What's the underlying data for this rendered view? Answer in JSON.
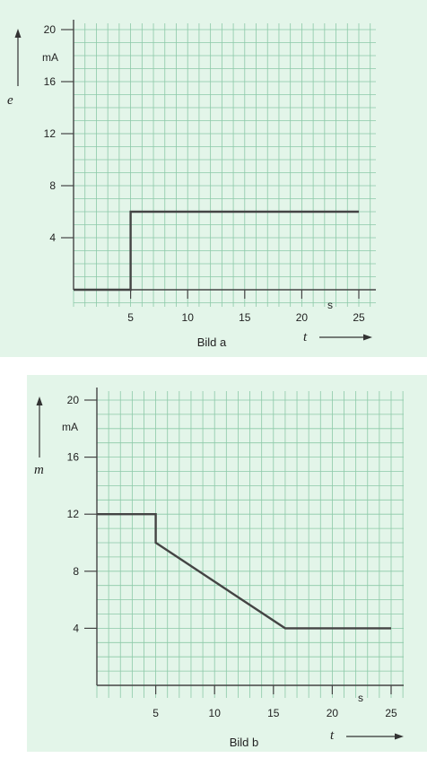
{
  "chart_data": [
    {
      "type": "line",
      "caption": "Bild a",
      "ylabel": "e",
      "yunit": "mA",
      "xlabel": "t",
      "xunit": "s",
      "xlim": [
        0,
        25
      ],
      "ylim": [
        0,
        20
      ],
      "xticks": [
        5,
        10,
        15,
        20,
        25
      ],
      "yticks": [
        4,
        8,
        12,
        16,
        20
      ],
      "grid": true,
      "background": "#e3f5e9",
      "grid_color": "#8cc9a8",
      "line_color": "#444444",
      "series": [
        {
          "x": [
            0,
            5,
            5,
            25
          ],
          "y": [
            0,
            0,
            6,
            6
          ]
        }
      ]
    },
    {
      "type": "line",
      "caption": "Bild b",
      "ylabel": "m",
      "yunit": "mA",
      "xlabel": "t",
      "xunit": "s",
      "xlim": [
        0,
        25
      ],
      "ylim": [
        0,
        20
      ],
      "xticks": [
        5,
        10,
        15,
        20,
        25
      ],
      "yticks": [
        4,
        8,
        12,
        16,
        20
      ],
      "grid": true,
      "background": "#e3f5e9",
      "grid_color": "#8cc9a8",
      "line_color": "#444444",
      "series": [
        {
          "x": [
            0,
            5,
            5,
            16,
            25
          ],
          "y": [
            12,
            12,
            10,
            4,
            4
          ]
        }
      ]
    }
  ]
}
